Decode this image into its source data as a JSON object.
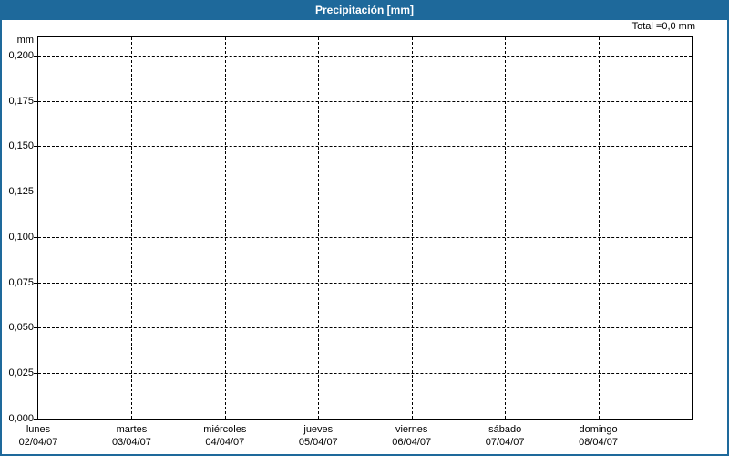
{
  "window_title": "Precipitación [mm]",
  "chart_data": {
    "type": "bar",
    "title": "Precipitación [mm]",
    "total_annotation": "Total =0,0 mm",
    "unit_label": "mm",
    "categories": [
      "lunes",
      "martes",
      "miércoles",
      "jueves",
      "viernes",
      "sábado",
      "domingo"
    ],
    "category_dates": [
      "02/04/07",
      "03/04/07",
      "04/04/07",
      "05/04/07",
      "06/04/07",
      "07/04/07",
      "08/04/07"
    ],
    "values": [
      0,
      0,
      0,
      0,
      0,
      0,
      0
    ],
    "yticks": {
      "values": [
        0,
        0.025,
        0.05,
        0.075,
        0.1,
        0.125,
        0.15,
        0.175,
        0.2
      ],
      "labels": [
        "0,000",
        "0,025",
        "0,050",
        "0,075",
        "0,100",
        "0,125",
        "0,150",
        "0,175",
        "0,200"
      ]
    },
    "ylim": [
      0,
      0.21
    ],
    "xlabel": "",
    "ylabel": "mm",
    "grid": "dashed",
    "legend_position": "none",
    "colors": {
      "titlebar_bg": "#1E699B",
      "frame_border": "#1E699B",
      "title_text": "#FFFFFF",
      "axis_text": "#000000",
      "gridline": "#000000",
      "plot_bg": "#FFFFFF",
      "bar": "#2A7AB8"
    }
  }
}
